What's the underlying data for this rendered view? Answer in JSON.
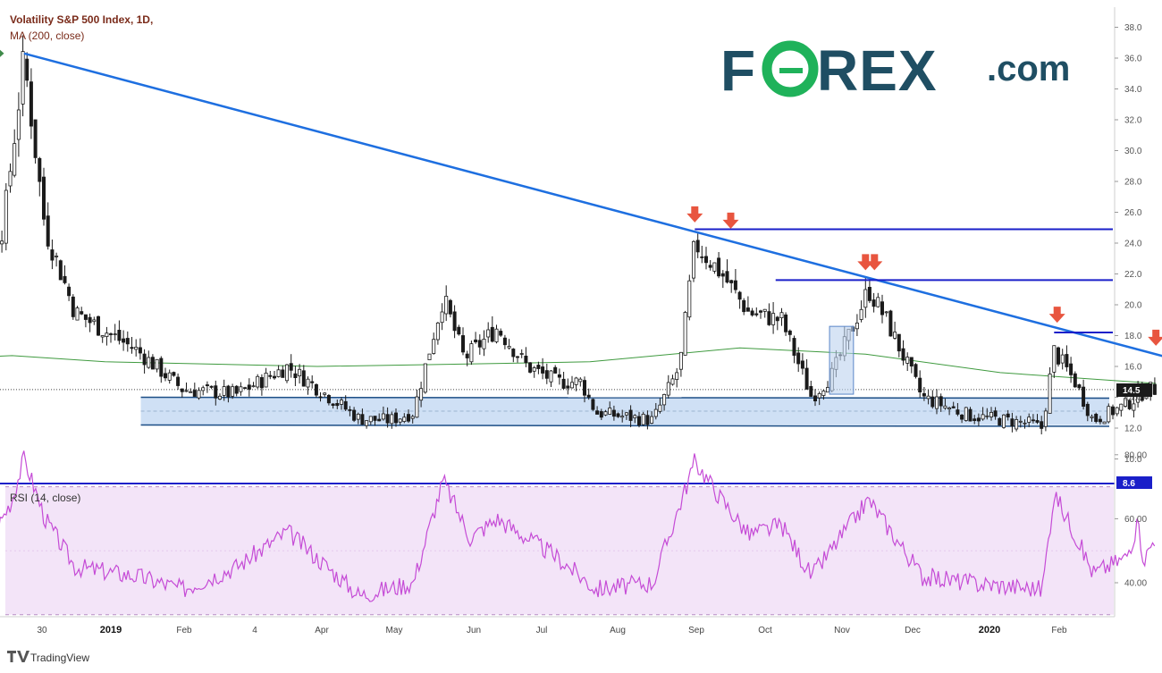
{
  "header": {
    "title": "Volatility S&P 500 Index, 1D,",
    "indicator": "MA (200, close)"
  },
  "rsi": {
    "label": "RSI (14, close)"
  },
  "brand": {
    "logo_left": "F",
    "logo_right": "REX",
    "logo_suffix": ".com",
    "footer": "TradingView"
  },
  "price_label": "14.5",
  "low_label": "8.6",
  "colors": {
    "trendline": "#1e6fe0",
    "resistance": "#1a1fc9",
    "support_zone": "#cfe0f5",
    "ma": "#3f9a3f",
    "rsi_line": "#c54bd6",
    "rsi_band": "#f3e4f8",
    "arrow_down": "#e8553f",
    "arrow_up": "#3f8a4a",
    "candle": "#1a1a1a"
  },
  "chart_data": [
    {
      "type": "candlestick",
      "title": "Volatility S&P 500 Index, 1D,",
      "ylim": [
        8.6,
        39.0
      ],
      "y_ticks": [
        "10.0",
        "12.0",
        "14.0",
        "16.0",
        "18.0",
        "20.0",
        "22.0",
        "24.0",
        "26.0",
        "28.0",
        "30.0",
        "32.0",
        "34.0",
        "36.0",
        "38.0"
      ],
      "x_ticks": [
        "30",
        "2019",
        "Feb",
        "4",
        "Apr",
        "May",
        "Jun",
        "Jul",
        "Aug",
        "Sep",
        "Oct",
        "Nov",
        "Dec",
        "2020",
        "Feb"
      ],
      "last_price": 14.5,
      "waypoints": [
        [
          "2018-11-27",
          19.0
        ],
        [
          "2018-12-07",
          23.0
        ],
        [
          "2018-12-17",
          25.0
        ],
        [
          "2018-12-24",
          36.0
        ],
        [
          "2018-12-31",
          25.0
        ],
        [
          "2019-01-10",
          19.5
        ],
        [
          "2019-01-31",
          17.0
        ],
        [
          "2019-02-15",
          14.5
        ],
        [
          "2019-03-05",
          14.2
        ],
        [
          "2019-03-22",
          16.0
        ],
        [
          "2019-04-15",
          12.6
        ],
        [
          "2019-04-25",
          12.5
        ],
        [
          "2019-05-03",
          13.0
        ],
        [
          "2019-05-13",
          20.5
        ],
        [
          "2019-05-20",
          16.5
        ],
        [
          "2019-05-31",
          18.5
        ],
        [
          "2019-06-10",
          16.0
        ],
        [
          "2019-06-20",
          15.0
        ],
        [
          "2019-06-28",
          15.0
        ],
        [
          "2019-07-03",
          13.0
        ],
        [
          "2019-07-22",
          12.5
        ],
        [
          "2019-07-31",
          16.0
        ],
        [
          "2019-08-05",
          24.0
        ],
        [
          "2019-08-14",
          22.0
        ],
        [
          "2019-08-23",
          19.5
        ],
        [
          "2019-09-03",
          19.0
        ],
        [
          "2019-09-13",
          14.0
        ],
        [
          "2019-09-20",
          15.5
        ],
        [
          "2019-10-02",
          21.0
        ],
        [
          "2019-10-08",
          19.0
        ],
        [
          "2019-10-20",
          14.0
        ],
        [
          "2019-11-05",
          12.8
        ],
        [
          "2019-11-25",
          12.3
        ],
        [
          "2019-11-29",
          12.0
        ],
        [
          "2019-12-03",
          17.0
        ],
        [
          "2019-12-10",
          15.0
        ],
        [
          "2019-12-16",
          12.5
        ],
        [
          "2019-12-27",
          13.5
        ],
        [
          "2020-01-03",
          14.5
        ],
        [
          "2020-01-06",
          14.5
        ]
      ],
      "trendline": {
        "from": [
          "2018-12-24",
          36.3
        ],
        "to": [
          "2020-01-31",
          15.5
        ]
      },
      "resistance_levels": [
        {
          "from": "2019-08-05",
          "level": 24.9
        },
        {
          "from": "2019-09-01",
          "level": 21.6
        },
        {
          "from": "2019-12-03",
          "level": 18.2
        }
      ],
      "support_zone": {
        "from": "2019-02-01",
        "low": 12.2,
        "high": 14.0
      },
      "ma_200": [
        [
          "2018-11-27",
          16.5
        ],
        [
          "2018-12-20",
          16.7
        ],
        [
          "2019-01-20",
          16.3
        ],
        [
          "2019-04-01",
          16.0
        ],
        [
          "2019-06-01",
          16.2
        ],
        [
          "2019-07-01",
          16.3
        ],
        [
          "2019-08-20",
          17.2
        ],
        [
          "2019-10-01",
          16.8
        ],
        [
          "2019-11-15",
          15.6
        ],
        [
          "2020-01-06",
          14.9
        ]
      ],
      "arrows": [
        {
          "date": "2018-12-20",
          "value": 36.3,
          "direction": "right"
        },
        {
          "date": "2019-08-05",
          "value": 25.8,
          "direction": "down"
        },
        {
          "date": "2019-08-17",
          "value": 25.4,
          "direction": "down"
        },
        {
          "date": "2019-10-01",
          "value": 22.7,
          "direction": "down"
        },
        {
          "date": "2019-10-04",
          "value": 22.7,
          "direction": "down"
        },
        {
          "date": "2019-12-04",
          "value": 19.3,
          "direction": "down"
        },
        {
          "date": "2020-01-06",
          "value": 17.8,
          "direction": "down"
        }
      ]
    },
    {
      "type": "line",
      "title": "RSI (14, close)",
      "ylim": [
        26,
        86
      ],
      "y_ticks": [
        "40.00",
        "60.00",
        "80.00"
      ],
      "band": [
        30,
        70
      ],
      "waypoints": [
        [
          "2018-11-27",
          55
        ],
        [
          "2018-12-05",
          62
        ],
        [
          "2018-12-12",
          52
        ],
        [
          "2018-12-20",
          66
        ],
        [
          "2018-12-24",
          79
        ],
        [
          "2018-12-31",
          60
        ],
        [
          "2019-01-10",
          45
        ],
        [
          "2019-01-31",
          42
        ],
        [
          "2019-02-15",
          38
        ],
        [
          "2019-03-05",
          45
        ],
        [
          "2019-03-22",
          56
        ],
        [
          "2019-04-15",
          36
        ],
        [
          "2019-05-03",
          40
        ],
        [
          "2019-05-13",
          72
        ],
        [
          "2019-05-22",
          54
        ],
        [
          "2019-05-31",
          60
        ],
        [
          "2019-06-20",
          48
        ],
        [
          "2019-07-03",
          38
        ],
        [
          "2019-07-22",
          40
        ],
        [
          "2019-08-05",
          78
        ],
        [
          "2019-08-14",
          66
        ],
        [
          "2019-08-23",
          55
        ],
        [
          "2019-09-03",
          58
        ],
        [
          "2019-09-13",
          42
        ],
        [
          "2019-10-02",
          66
        ],
        [
          "2019-10-08",
          58
        ],
        [
          "2019-10-20",
          42
        ],
        [
          "2019-11-05",
          40
        ],
        [
          "2019-11-29",
          38
        ],
        [
          "2019-12-03",
          68
        ],
        [
          "2019-12-10",
          55
        ],
        [
          "2019-12-16",
          43
        ],
        [
          "2019-12-27",
          48
        ],
        [
          "2019-12-31",
          58
        ],
        [
          "2020-01-02",
          47
        ],
        [
          "2020-01-06",
          55
        ]
      ]
    }
  ]
}
